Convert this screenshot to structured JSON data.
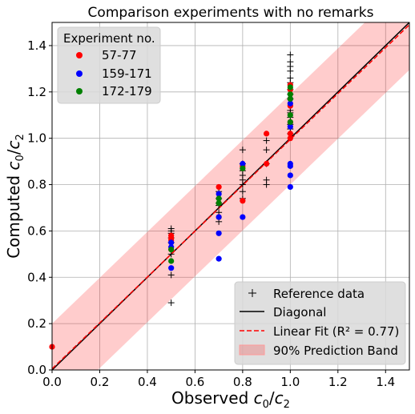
{
  "chart_data": {
    "type": "scatter",
    "title": "Comparison experiments with no remarks",
    "xlabel": "Observed c0/c2",
    "ylabel": "Computed c0/c2",
    "xlim": [
      0,
      1.5
    ],
    "ylim": [
      0,
      1.5
    ],
    "x_ticks": [
      0.0,
      0.2,
      0.4,
      0.6,
      0.8,
      1.0,
      1.2,
      1.4
    ],
    "y_ticks": [
      0.0,
      0.2,
      0.4,
      0.6,
      0.8,
      1.0,
      1.2,
      1.4
    ],
    "tick_labels": [
      "0.0",
      "0.2",
      "0.4",
      "0.6",
      "0.8",
      "1.0",
      "1.2",
      "1.4"
    ],
    "grid": true,
    "series": [
      {
        "name": "57-77",
        "color": "#ff0000",
        "marker": "circle",
        "points": [
          [
            0.0,
            0.1
          ],
          [
            0.5,
            0.58
          ],
          [
            0.5,
            0.57
          ],
          [
            0.5,
            0.56
          ],
          [
            0.5,
            0.52
          ],
          [
            0.7,
            0.79
          ],
          [
            0.7,
            0.66
          ],
          [
            0.8,
            0.73
          ],
          [
            0.8,
            0.88
          ],
          [
            0.9,
            1.02
          ],
          [
            0.9,
            0.89
          ],
          [
            1.0,
            1.23
          ],
          [
            1.0,
            1.21
          ],
          [
            1.0,
            1.14
          ],
          [
            1.0,
            1.07
          ],
          [
            1.0,
            1.02
          ],
          [
            1.0,
            1.0
          ]
        ]
      },
      {
        "name": "159-171",
        "color": "#0000ff",
        "marker": "circle",
        "points": [
          [
            0.5,
            0.55
          ],
          [
            0.5,
            0.53
          ],
          [
            0.5,
            0.44
          ],
          [
            0.7,
            0.48
          ],
          [
            0.7,
            0.76
          ],
          [
            0.7,
            0.66
          ],
          [
            0.7,
            0.59
          ],
          [
            0.8,
            0.89
          ],
          [
            0.8,
            0.66
          ],
          [
            1.0,
            1.17
          ],
          [
            1.0,
            1.15
          ],
          [
            1.0,
            1.05
          ],
          [
            1.0,
            0.89
          ],
          [
            1.0,
            0.88
          ],
          [
            1.0,
            0.84
          ],
          [
            1.0,
            0.79
          ]
        ]
      },
      {
        "name": "172-179",
        "color": "#008000",
        "marker": "circle",
        "points": [
          [
            0.5,
            0.52
          ],
          [
            0.5,
            0.47
          ],
          [
            0.7,
            0.74
          ],
          [
            0.7,
            0.72
          ],
          [
            0.8,
            0.87
          ],
          [
            1.0,
            1.22
          ],
          [
            1.0,
            1.19
          ],
          [
            1.0,
            1.17
          ],
          [
            1.0,
            1.1
          ],
          [
            1.0,
            1.07
          ]
        ]
      },
      {
        "name": "Reference data",
        "color": "#000000",
        "marker": "plus",
        "points": [
          [
            0.5,
            0.61
          ],
          [
            0.5,
            0.6
          ],
          [
            0.5,
            0.59
          ],
          [
            0.5,
            0.57
          ],
          [
            0.5,
            0.55
          ],
          [
            0.5,
            0.5
          ],
          [
            0.5,
            0.41
          ],
          [
            0.5,
            0.29
          ],
          [
            0.7,
            0.77
          ],
          [
            0.7,
            0.74
          ],
          [
            0.7,
            0.72
          ],
          [
            0.7,
            0.71
          ],
          [
            0.7,
            0.68
          ],
          [
            0.7,
            0.64
          ],
          [
            0.8,
            0.95
          ],
          [
            0.8,
            0.89
          ],
          [
            0.8,
            0.86
          ],
          [
            0.8,
            0.84
          ],
          [
            0.8,
            0.82
          ],
          [
            0.8,
            0.8
          ],
          [
            0.8,
            0.77
          ],
          [
            0.8,
            0.74
          ],
          [
            0.9,
            0.99
          ],
          [
            0.9,
            0.95
          ],
          [
            0.9,
            0.89
          ],
          [
            0.9,
            0.82
          ],
          [
            0.9,
            0.8
          ],
          [
            1.0,
            1.36
          ],
          [
            1.0,
            1.33
          ],
          [
            1.0,
            1.31
          ],
          [
            1.0,
            1.29
          ],
          [
            1.0,
            1.26
          ],
          [
            1.0,
            1.24
          ],
          [
            1.0,
            1.21
          ],
          [
            1.0,
            1.19
          ],
          [
            1.0,
            1.17
          ],
          [
            1.0,
            1.12
          ],
          [
            1.0,
            1.11
          ],
          [
            1.0,
            1.09
          ],
          [
            1.0,
            1.06
          ],
          [
            1.0,
            1.04
          ],
          [
            1.0,
            1.02
          ]
        ]
      }
    ],
    "lines": [
      {
        "name": "Diagonal",
        "color": "#000000",
        "style": "solid",
        "slope": 1.0,
        "intercept": 0.0
      },
      {
        "name": "Linear Fit",
        "color": "#ff0000",
        "style": "dashed",
        "slope": 0.99,
        "intercept": 0.005
      }
    ],
    "band": {
      "name": "90% Prediction Band",
      "color": "#ff0000",
      "opacity": 0.2,
      "slope": 0.99,
      "intercept": 0.005,
      "half_width": 0.195
    },
    "legend_left": {
      "title": "Experiment no.",
      "entries": [
        {
          "label": "57-77",
          "color": "#ff0000",
          "marker": "circle"
        },
        {
          "label": "159-171",
          "color": "#0000ff",
          "marker": "circle"
        },
        {
          "label": "172-179",
          "color": "#008000",
          "marker": "circle"
        }
      ],
      "position": "top-left"
    },
    "legend_right": {
      "entries": [
        {
          "label": "Reference data",
          "marker": "plus",
          "color": "#000000"
        },
        {
          "label": "Diagonal",
          "marker": "line",
          "color": "#000000"
        },
        {
          "label": "Linear Fit (R² = 0.77)",
          "marker": "dashed",
          "color": "#ff0000"
        },
        {
          "label": "90% Prediction Band",
          "marker": "patch",
          "color": "#ff0000"
        }
      ],
      "position": "bottom-right"
    }
  }
}
